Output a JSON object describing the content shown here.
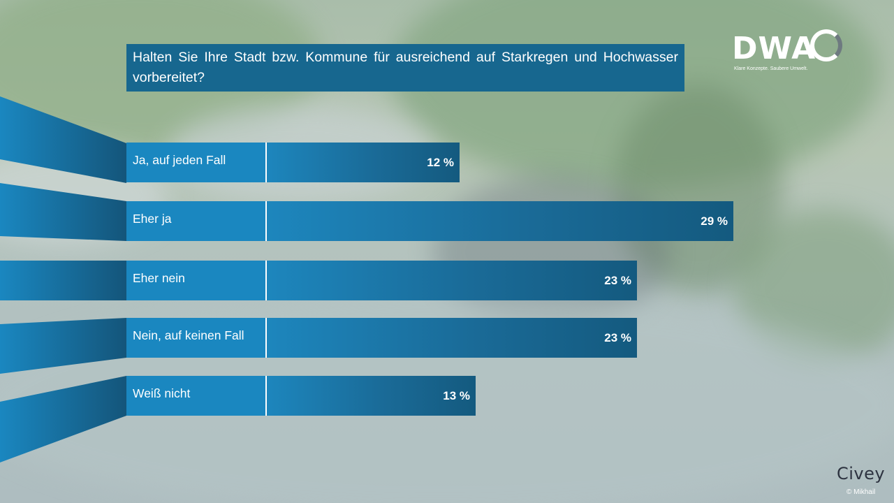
{
  "title": "Halten Sie Ihre Stadt bzw. Kommune für ausreichend auf Starkregen und Hochwasser vorbereitet?",
  "logo": {
    "text": "DWA",
    "tagline": "Klare Konzepte. Saubere Umwelt."
  },
  "footer": {
    "brand": "Civey",
    "credit": "© Mikhail"
  },
  "colors": {
    "title_bg": "#17678f",
    "label_bg": "#1a87c0",
    "bar_dark": "#145a7f",
    "bar_light": "#1d86bd"
  },
  "chart_data": {
    "type": "bar",
    "orientation": "horizontal",
    "title": "Halten Sie Ihre Stadt bzw. Kommune für ausreichend auf Starkregen und Hochwasser vorbereitet?",
    "categories": [
      "Ja, auf jeden Fall",
      "Eher ja",
      " Eher nein",
      "Nein, auf keinen Fall",
      "Weiß nicht"
    ],
    "values": [
      12,
      29,
      23,
      23,
      13
    ],
    "value_labels": [
      "12 %",
      "29 %",
      "23 %",
      "23 %",
      "13 %"
    ],
    "unit": "%",
    "xlim": [
      0,
      29
    ],
    "grid": false,
    "legend": "none"
  }
}
